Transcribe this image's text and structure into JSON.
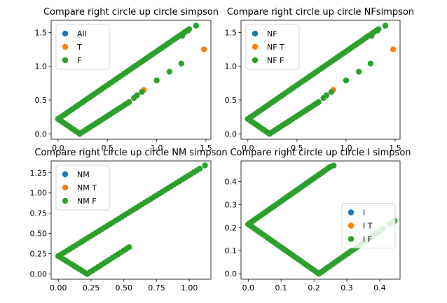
{
  "chart_data": [
    {
      "type": "scatter",
      "title": "Compare right circle up circle simpson",
      "xlim": [
        -0.07,
        1.55
      ],
      "ylim": [
        -0.08,
        1.68
      ],
      "xticks": [
        0.0,
        0.5,
        1.0,
        1.5
      ],
      "xtick_labels": [
        "0.0",
        "0.5",
        "1.0",
        "1.5"
      ],
      "yticks": [
        0.0,
        0.5,
        1.0,
        1.5
      ],
      "ytick_labels": [
        "0.0",
        "0.5",
        "1.0",
        "1.5"
      ],
      "legend_position": "upper-left",
      "series": [
        {
          "name": "All",
          "color": "#1f77b4",
          "points": []
        },
        {
          "name": "T",
          "color": "#ff7f0e",
          "points": [
            [
              0.87,
              0.65
            ],
            [
              1.48,
              1.25
            ]
          ]
        },
        {
          "name": "F",
          "color": "#2ca02c",
          "segments": [
            {
              "from": [
                0.0,
                0.22
              ],
              "to": [
                1.33,
                1.55
              ],
              "n": 55
            },
            {
              "from": [
                0.0,
                0.22
              ],
              "to": [
                0.22,
                0.0
              ],
              "n": 12
            },
            {
              "from": [
                0.22,
                0.0
              ],
              "to": [
                0.72,
                0.47
              ],
              "n": 24
            }
          ],
          "points": [
            [
              1.4,
              1.6
            ],
            [
              0.77,
              0.53
            ],
            [
              0.8,
              0.57
            ],
            [
              0.85,
              0.62
            ],
            [
              1.0,
              0.79
            ],
            [
              1.13,
              0.92
            ],
            [
              1.25,
              1.04
            ],
            [
              1.26,
              1.45
            ],
            [
              1.32,
              1.53
            ]
          ]
        }
      ]
    },
    {
      "type": "scatter",
      "title": "Compare right circle up circle NFsimpson",
      "xlim": [
        -0.07,
        1.55
      ],
      "ylim": [
        -0.08,
        1.68
      ],
      "xticks": [
        0.0,
        0.5,
        1.0,
        1.5
      ],
      "xtick_labels": [
        "0.0",
        "0.5",
        "1.0",
        "1.5"
      ],
      "yticks": [
        0.0,
        0.5,
        1.0,
        1.5
      ],
      "ytick_labels": [
        "0.0",
        "0.5",
        "1.0",
        "1.5"
      ],
      "legend_position": "upper-left",
      "series": [
        {
          "name": "NF",
          "color": "#1f77b4",
          "points": []
        },
        {
          "name": "NF T",
          "color": "#ff7f0e",
          "points": [
            [
              0.87,
              0.65
            ],
            [
              1.48,
              1.25
            ]
          ]
        },
        {
          "name": "NF F",
          "color": "#2ca02c",
          "segments": [
            {
              "from": [
                0.0,
                0.22
              ],
              "to": [
                1.33,
                1.55
              ],
              "n": 55
            },
            {
              "from": [
                0.0,
                0.22
              ],
              "to": [
                0.22,
                0.0
              ],
              "n": 12
            },
            {
              "from": [
                0.22,
                0.0
              ],
              "to": [
                0.72,
                0.47
              ],
              "n": 24
            }
          ],
          "points": [
            [
              1.4,
              1.6
            ],
            [
              0.77,
              0.53
            ],
            [
              0.8,
              0.57
            ],
            [
              0.85,
              0.62
            ],
            [
              1.0,
              0.79
            ],
            [
              1.13,
              0.92
            ],
            [
              1.25,
              1.04
            ],
            [
              1.26,
              1.45
            ],
            [
              1.32,
              1.53
            ]
          ]
        }
      ]
    },
    {
      "type": "scatter",
      "title": "Compare right circle up circle NM simpson",
      "xlim": [
        -0.055,
        1.165
      ],
      "ylim": [
        -0.065,
        1.395
      ],
      "xticks": [
        0.0,
        0.25,
        0.5,
        0.75,
        1.0
      ],
      "xtick_labels": [
        "0.00",
        "0.25",
        "0.50",
        "0.75",
        "1.00"
      ],
      "yticks": [
        0.0,
        0.25,
        0.5,
        0.75,
        1.0,
        1.25
      ],
      "ytick_labels": [
        "0.00",
        "0.25",
        "0.50",
        "0.75",
        "1.00",
        "1.25"
      ],
      "legend_position": "upper-left",
      "series": [
        {
          "name": "NM",
          "color": "#1f77b4",
          "points": []
        },
        {
          "name": "NM T",
          "color": "#ff7f0e",
          "points": []
        },
        {
          "name": "NM F",
          "color": "#2ca02c",
          "segments": [
            {
              "from": [
                0.0,
                0.22
              ],
              "to": [
                1.08,
                1.3
              ],
              "n": 50
            },
            {
              "from": [
                0.0,
                0.22
              ],
              "to": [
                0.22,
                0.0
              ],
              "n": 12
            },
            {
              "from": [
                0.22,
                0.0
              ],
              "to": [
                0.54,
                0.33
              ],
              "n": 16
            }
          ],
          "points": [
            [
              1.12,
              1.34
            ]
          ]
        }
      ]
    },
    {
      "type": "scatter",
      "title": "Compare right circle up circle I simpson",
      "xlim": [
        -0.022,
        0.462
      ],
      "ylim": [
        -0.024,
        0.49
      ],
      "xticks": [
        0.0,
        0.1,
        0.2,
        0.3,
        0.4
      ],
      "xtick_labels": [
        "0.0",
        "0.1",
        "0.2",
        "0.3",
        "0.4"
      ],
      "yticks": [
        0.0,
        0.1,
        0.2,
        0.3,
        0.4
      ],
      "ytick_labels": [
        "0.0",
        "0.1",
        "0.2",
        "0.3",
        "0.4"
      ],
      "legend_position": "center-right",
      "series": [
        {
          "name": "I",
          "color": "#1f77b4",
          "points": []
        },
        {
          "name": "I T",
          "color": "#ff7f0e",
          "points": [
            [
              0.2,
              0.415
            ],
            [
              0.215,
              0.43
            ]
          ]
        },
        {
          "name": "I F",
          "color": "#2ca02c",
          "segments": [
            {
              "from": [
                0.0,
                0.215
              ],
              "to": [
                0.25,
                0.465
              ],
              "n": 45
            },
            {
              "from": [
                0.0,
                0.215
              ],
              "to": [
                0.215,
                0.0
              ],
              "n": 35
            },
            {
              "from": [
                0.215,
                0.0
              ],
              "to": [
                0.41,
                0.195
              ],
              "n": 32
            }
          ],
          "points": [
            [
              0.26,
              0.47
            ],
            [
              0.43,
              0.215
            ],
            [
              0.44,
              0.225
            ],
            [
              0.445,
              0.23
            ]
          ]
        }
      ]
    }
  ]
}
